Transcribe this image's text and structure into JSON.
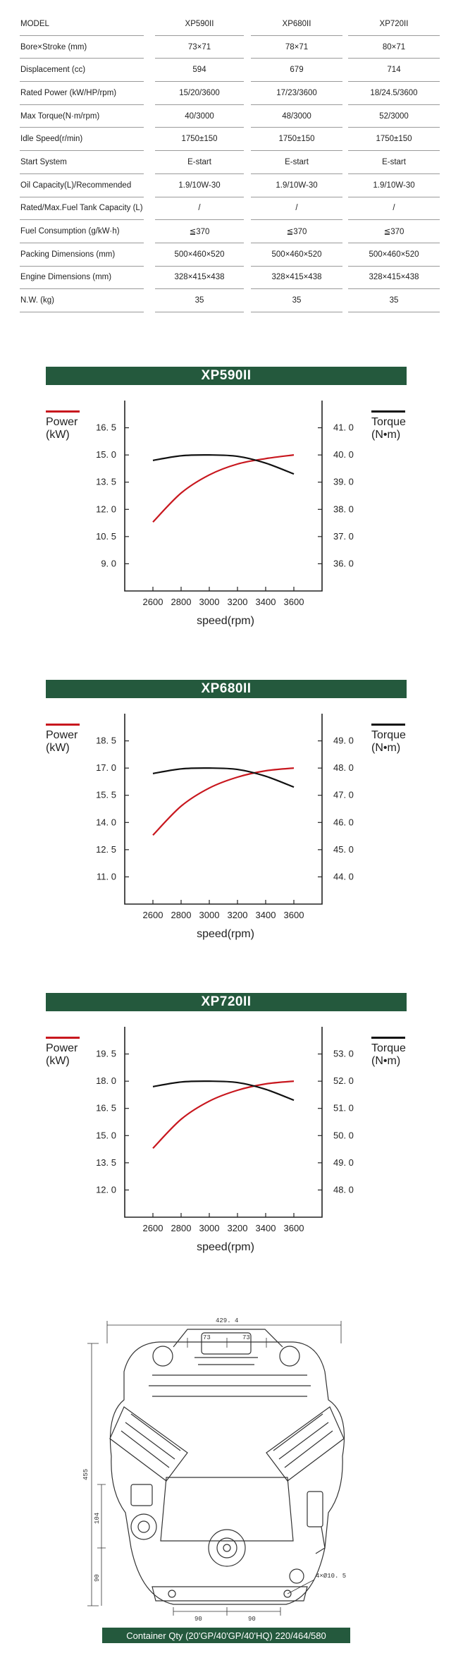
{
  "spec_table": {
    "header": {
      "label": "MODEL",
      "models": [
        "XP590II",
        "XP680II",
        "XP720II"
      ]
    },
    "rows": [
      {
        "label": "Bore×Stroke (mm)",
        "values": [
          "73×71",
          "78×71",
          "80×71"
        ]
      },
      {
        "label": "Displacement (cc)",
        "values": [
          "594",
          "679",
          "714"
        ]
      },
      {
        "label": "Rated Power (kW/HP/rpm)",
        "values": [
          "15/20/3600",
          "17/23/3600",
          "18/24.5/3600"
        ]
      },
      {
        "label": "Max Torque(N·m/rpm)",
        "values": [
          "40/3000",
          "48/3000",
          "52/3000"
        ]
      },
      {
        "label": "Idle Speed(r/min)",
        "values": [
          "1750±150",
          "1750±150",
          "1750±150"
        ]
      },
      {
        "label": "Start System",
        "values": [
          "E-start",
          "E-start",
          "E-start"
        ]
      },
      {
        "label": "Oil Capacity(L)/Recommended",
        "values": [
          "1.9/10W-30",
          "1.9/10W-30",
          "1.9/10W-30"
        ]
      },
      {
        "label": "Rated/Max.Fuel Tank Capacity (L)",
        "values": [
          "/",
          "/",
          "/"
        ]
      },
      {
        "label": "Fuel Consumption (g/kW·h)",
        "values": [
          "≦370",
          "≦370",
          "≦370"
        ]
      },
      {
        "label": "Packing Dimensions (mm)",
        "values": [
          "500×460×520",
          "500×460×520",
          "500×460×520"
        ]
      },
      {
        "label": "Engine Dimensions (mm)",
        "values": [
          "328×415×438",
          "328×415×438",
          "328×415×438"
        ]
      },
      {
        "label": "N.W. (kg)",
        "values": [
          "35",
          "35",
          "35"
        ]
      }
    ]
  },
  "chart_legend": {
    "power_label": "Power",
    "power_unit": "(kW)",
    "torque_label": "Torque",
    "torque_unit": "(N•m)",
    "xlabel": "speed(rpm)"
  },
  "colors": {
    "power": "#c8171e",
    "torque": "#111111",
    "banner": "#24593d"
  },
  "chart_data": [
    {
      "type": "line",
      "title": "XP590II",
      "xlabel": "speed(rpm)",
      "x": [
        2600,
        2800,
        3000,
        3200,
        3400,
        3600
      ],
      "xlim": [
        2400,
        3800
      ],
      "y_left": {
        "label": "Power (kW)",
        "ticks": [
          "16. 5",
          "15. 0",
          "13. 5",
          "12. 0",
          "10. 5",
          "9. 0"
        ],
        "ylim": [
          7.5,
          18.0
        ]
      },
      "y_right": {
        "label": "Torque (N•m)",
        "ticks": [
          "41. 0",
          "40. 0",
          "39. 0",
          "38. 0",
          "37. 0",
          "36. 0"
        ],
        "ylim": [
          35.0,
          42.0
        ]
      },
      "series": [
        {
          "name": "Power",
          "axis": "left",
          "values": [
            11.3,
            12.9,
            13.9,
            14.5,
            14.8,
            15.0
          ]
        },
        {
          "name": "Torque",
          "axis": "right",
          "values": [
            39.8,
            39.97,
            40.0,
            39.95,
            39.7,
            39.3
          ]
        }
      ],
      "grid": false,
      "legend": "outside-left-and-right"
    },
    {
      "type": "line",
      "title": "XP680II",
      "xlabel": "speed(rpm)",
      "x": [
        2600,
        2800,
        3000,
        3200,
        3400,
        3600
      ],
      "xlim": [
        2400,
        3800
      ],
      "y_left": {
        "label": "Power (kW)",
        "ticks": [
          "18. 5",
          "17. 0",
          "15. 5",
          "14. 0",
          "12. 5",
          "11. 0"
        ],
        "ylim": [
          9.5,
          20.0
        ]
      },
      "y_right": {
        "label": "Torque (N•m)",
        "ticks": [
          "49. 0",
          "48. 0",
          "47. 0",
          "46. 0",
          "45. 0",
          "44. 0"
        ],
        "ylim": [
          43.0,
          50.0
        ]
      },
      "series": [
        {
          "name": "Power",
          "axis": "left",
          "values": [
            13.3,
            14.9,
            15.9,
            16.5,
            16.85,
            17.0
          ]
        },
        {
          "name": "Torque",
          "axis": "right",
          "values": [
            47.8,
            47.97,
            48.0,
            47.95,
            47.7,
            47.3
          ]
        }
      ],
      "grid": false,
      "legend": "outside-left-and-right"
    },
    {
      "type": "line",
      "title": "XP720II",
      "xlabel": "speed(rpm)",
      "x": [
        2600,
        2800,
        3000,
        3200,
        3400,
        3600
      ],
      "xlim": [
        2400,
        3800
      ],
      "y_left": {
        "label": "Power (kW)",
        "ticks": [
          "19. 5",
          "18. 0",
          "16. 5",
          "15. 0",
          "13. 5",
          "12. 0"
        ],
        "ylim": [
          10.5,
          21.0
        ]
      },
      "y_right": {
        "label": "Torque (N•m)",
        "ticks": [
          "53. 0",
          "52. 0",
          "51. 0",
          "50. 0",
          "49. 0",
          "48. 0"
        ],
        "ylim": [
          47.0,
          54.0
        ]
      },
      "series": [
        {
          "name": "Power",
          "axis": "left",
          "values": [
            14.3,
            15.9,
            16.9,
            17.5,
            17.85,
            18.0
          ]
        },
        {
          "name": "Torque",
          "axis": "right",
          "values": [
            51.8,
            51.97,
            52.0,
            51.95,
            51.7,
            51.3
          ]
        }
      ],
      "grid": false,
      "legend": "outside-left-and-right"
    }
  ],
  "drawing": {
    "dim_overall": "429. 4",
    "dim_top_left": "73",
    "dim_top_right": "73",
    "dim_height": "455",
    "dim_mid": "104",
    "dim_low": "90",
    "dim_bottom_left": "90",
    "dim_bottom_right": "90",
    "dim_holes": "4×Ø10. 5"
  },
  "container_qty": "Container Qty (20'GP/40'GP/40'HQ) 220/464/580"
}
